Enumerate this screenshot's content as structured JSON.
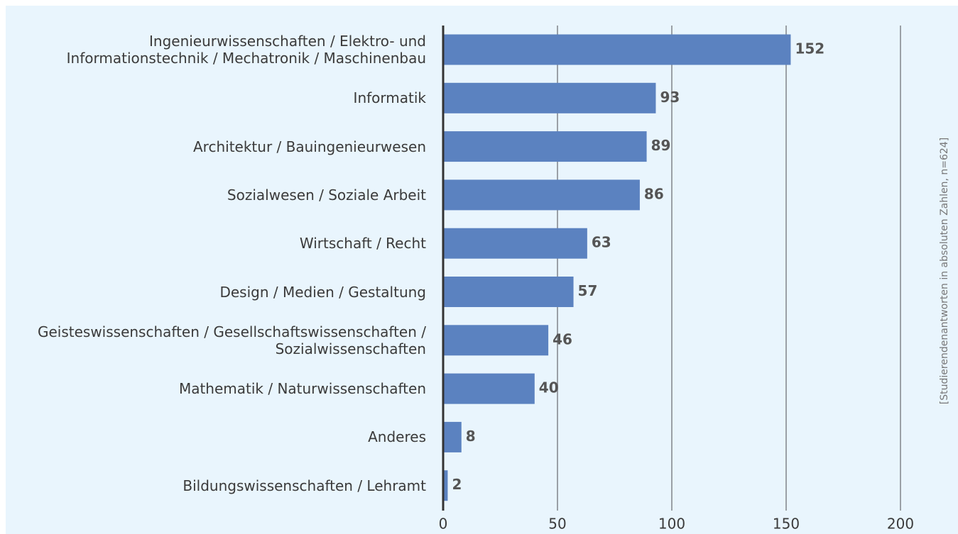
{
  "chart_data": {
    "type": "bar",
    "orientation": "horizontal",
    "categories": [
      "Ingenieurwissenschaften / Elektro- und\nInformationstechnik / Mechatronik / Maschinenbau",
      "Informatik",
      "Architektur / Bauingenieurwesen",
      "Sozialwesen / Soziale Arbeit",
      "Wirtschaft / Recht",
      "Design / Medien / Gestaltung",
      "Geisteswissenschaften / Gesellschaftswissenschaften /\nSozialwissenschaften",
      "Mathematik / Naturwissenschaften",
      "Anderes",
      "Bildungswissenschaften / Lehramt"
    ],
    "values": [
      152,
      93,
      89,
      86,
      63,
      57,
      46,
      40,
      8,
      2
    ],
    "color": "#5b82c0",
    "xlim": [
      0,
      200
    ],
    "xticks": [
      0,
      50,
      100,
      150,
      200
    ],
    "grid": true,
    "side_label": "[Studierendenantworten in absoluten Zahlen, n=624]"
  }
}
